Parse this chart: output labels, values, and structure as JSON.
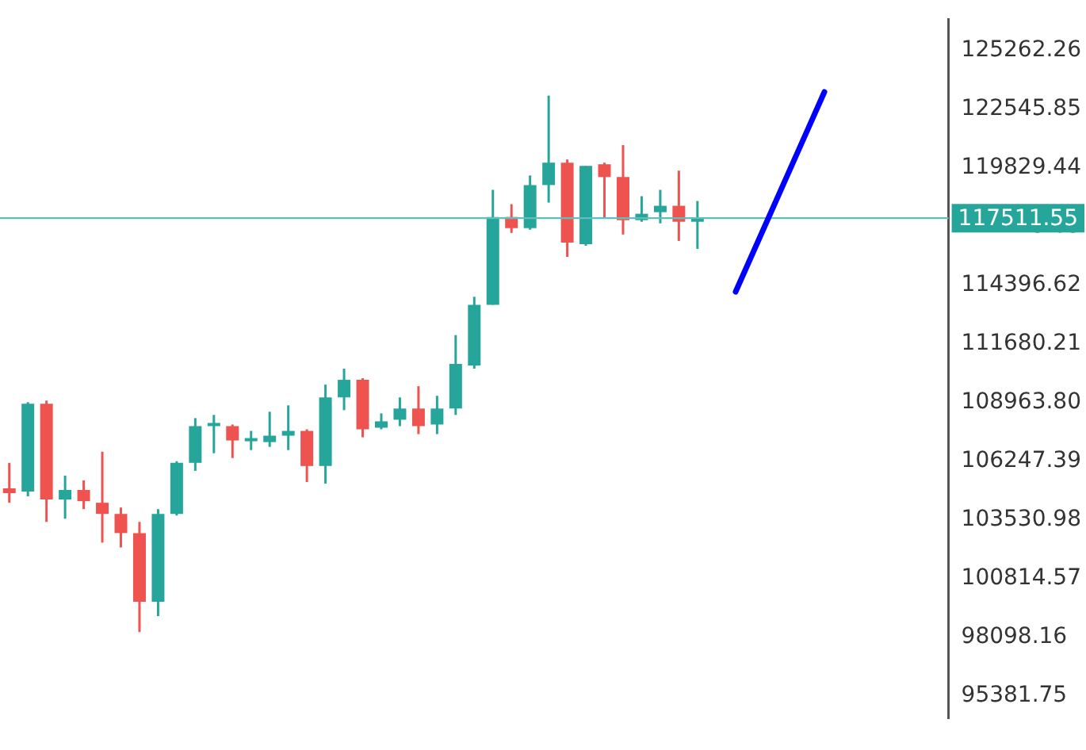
{
  "chart_data": {
    "type": "candlestick",
    "tick_labels": "y",
    "categories": [
      null,
      null,
      null,
      null,
      null,
      null,
      null,
      null,
      null,
      null,
      null,
      null,
      null,
      null,
      null,
      null,
      null,
      null,
      null,
      null,
      null,
      null,
      null,
      null,
      null,
      null,
      null,
      null,
      null,
      null,
      null,
      null,
      null,
      null,
      null,
      null,
      null,
      null,
      null,
      null,
      null,
      null,
      null,
      null,
      null,
      null,
      null,
      null,
      null,
      null,
      null
    ],
    "ohlc": [
      [
        104986,
        106170,
        104320,
        104764
      ],
      [
        104838,
        108982,
        104616,
        108908
      ],
      [
        108908,
        109056,
        103432,
        104468
      ],
      [
        104468,
        105578,
        103580,
        104912
      ],
      [
        104912,
        105356,
        104024,
        104394
      ],
      [
        104320,
        106688,
        102470,
        103802
      ],
      [
        103802,
        104098,
        102248,
        102914
      ],
      [
        102914,
        103432,
        98326,
        99732
      ],
      [
        99732,
        104024,
        99066,
        103802
      ],
      [
        103802,
        106244,
        103728,
        106170
      ],
      [
        106170,
        108242,
        105800,
        107872
      ],
      [
        107872,
        108390,
        106614,
        108020
      ],
      [
        107872,
        107946,
        106392,
        107206
      ],
      [
        107206,
        107650,
        106762,
        107280
      ],
      [
        107132,
        108538,
        106910,
        107428
      ],
      [
        107428,
        108834,
        106762,
        107650
      ],
      [
        107650,
        107724,
        105282,
        106022
      ],
      [
        106022,
        109796,
        105208,
        109204
      ],
      [
        109204,
        110536,
        108612,
        110018
      ],
      [
        110018,
        110092,
        107354,
        107724
      ],
      [
        107798,
        108464,
        107724,
        108094
      ],
      [
        108168,
        109204,
        107872,
        108686
      ],
      [
        108686,
        109722,
        107502,
        107872
      ],
      [
        107946,
        109278,
        107502,
        108686
      ],
      [
        108686,
        112090,
        108390,
        110758
      ],
      [
        110684,
        113866,
        110536,
        113496
      ],
      [
        113496,
        118824,
        113496,
        117566
      ],
      [
        117566,
        118158,
        116826,
        117048
      ],
      [
        117048,
        119490,
        116974,
        119046
      ],
      [
        119046,
        123190,
        118232,
        120082
      ],
      [
        120082,
        120230,
        115716,
        116382
      ],
      [
        116308,
        119934,
        116234,
        119934
      ],
      [
        120008,
        120082,
        117492,
        119416
      ],
      [
        119416,
        120896,
        116752,
        117418
      ],
      [
        117418,
        118528,
        117344,
        117714
      ],
      [
        117788,
        118824,
        117270,
        118084
      ],
      [
        118084,
        119712,
        116456,
        117344
      ],
      [
        117344,
        118306,
        116086,
        117492
      ],
      null,
      null,
      null,
      null,
      null,
      null,
      null,
      null,
      null,
      null,
      null,
      null,
      null
    ],
    "colors": [
      "#ef5350",
      "#26a69a",
      "#ef5350",
      "#26a69a",
      "#ef5350",
      "#ef5350",
      "#ef5350",
      "#ef5350",
      "#26a69a",
      "#26a69a",
      "#26a69a",
      "#26a69a",
      "#ef5350",
      "#26a69a",
      "#26a69a",
      "#26a69a",
      "#ef5350",
      "#26a69a",
      "#26a69a",
      "#ef5350",
      "#26a69a",
      "#26a69a",
      "#ef5350",
      "#26a69a",
      "#26a69a",
      "#26a69a",
      "#26a69a",
      "#ef5350",
      "#26a69a",
      "#26a69a",
      "#ef5350",
      "#26a69a",
      "#ef5350",
      "#ef5350",
      "#26a69a",
      "#26a69a",
      "#ef5350",
      "#26a69a",
      null,
      null,
      null,
      null,
      null,
      null,
      null,
      null,
      null,
      null,
      null,
      null,
      null
    ],
    "ylim": [
      94330,
      126740
    ],
    "yticks": [
      95381.75,
      98098.16,
      100814.57,
      103530.98,
      106247.39,
      {
        "value": 108963.8,
        "label": "108963.80"
      },
      111680.21,
      114396.62,
      117113.03,
      119829.44,
      122545.85,
      125262.26
    ],
    "ref_lines": [
      {
        "axis": "y",
        "value": 117511.55,
        "label": "117511.55",
        "color": "#5fbfbf"
      }
    ]
  }
}
